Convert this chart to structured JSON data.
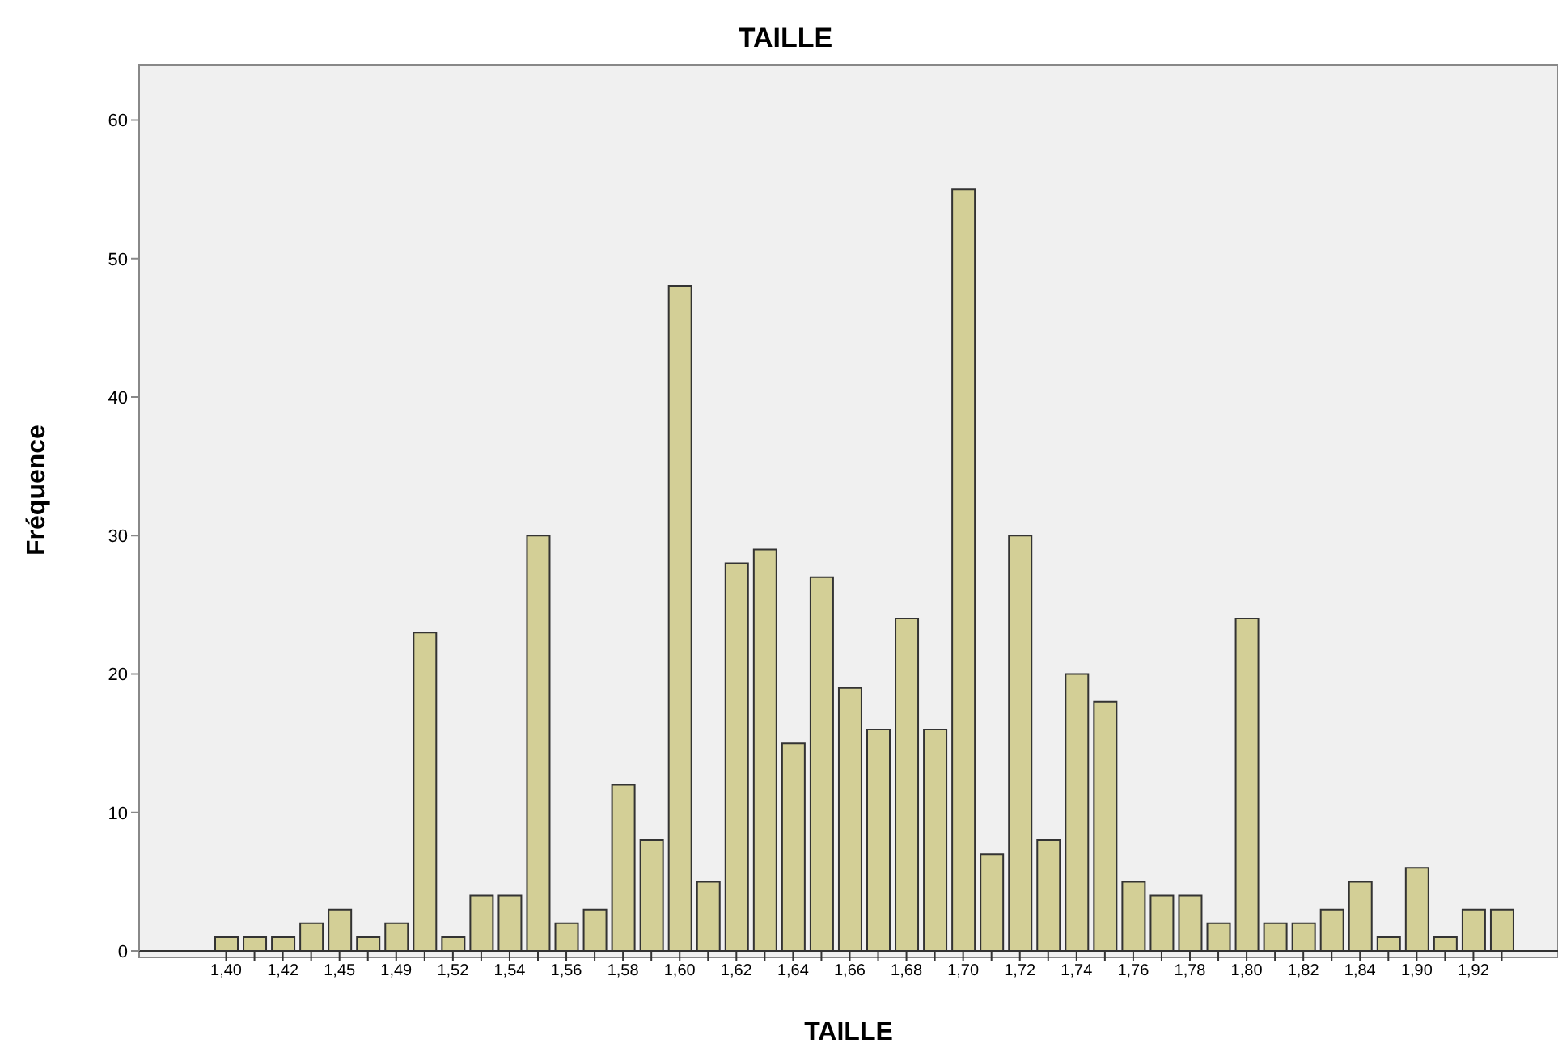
{
  "chart_data": {
    "type": "bar",
    "title": "TAILLE",
    "xlabel": "TAILLE",
    "ylabel": "Fréquence",
    "categories": [
      "1,40",
      null,
      "1,42",
      null,
      "1,45",
      null,
      "1,49",
      null,
      "1,52",
      null,
      "1,54",
      null,
      "1,56",
      null,
      "1,58",
      null,
      "1,60",
      null,
      "1,62",
      null,
      "1,64",
      null,
      "1,66",
      null,
      "1,68",
      null,
      "1,70",
      null,
      "1,72",
      null,
      "1,74",
      null,
      "1,76",
      null,
      "1,78",
      null,
      "1,80",
      null,
      "1,82",
      null,
      "1,84",
      null,
      "1,90",
      null,
      "1,92",
      null
    ],
    "values": [
      1,
      1,
      1,
      2,
      3,
      1,
      2,
      23,
      1,
      4,
      4,
      30,
      2,
      3,
      12,
      8,
      48,
      5,
      28,
      29,
      15,
      27,
      19,
      16,
      24,
      16,
      55,
      7,
      30,
      8,
      20,
      18,
      5,
      4,
      4,
      2,
      24,
      2,
      2,
      3,
      5,
      1,
      6,
      1,
      3,
      3
    ],
    "color": "#d3cf96",
    "ylim": [
      0,
      64
    ],
    "yticks": [
      0,
      10,
      20,
      30,
      40,
      50,
      60
    ]
  }
}
